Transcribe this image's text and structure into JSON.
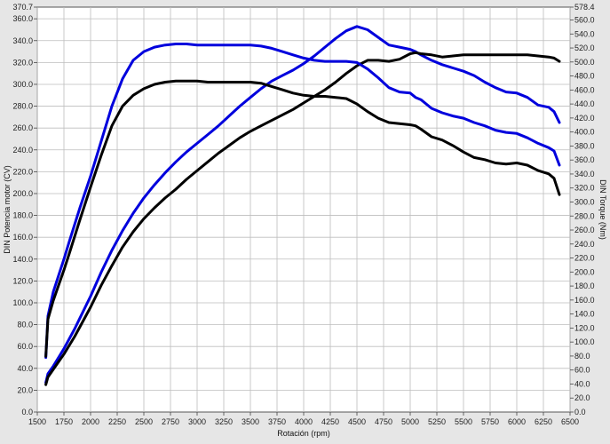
{
  "chart_data": {
    "type": "line",
    "xlabel": "Rotación (rpm)",
    "ylabel_left": "DIN Potencia motor (CV)",
    "ylabel_right": "DIN Torque (Nm)",
    "xlim": [
      1500,
      6500
    ],
    "ylim_left": [
      0,
      370.7
    ],
    "ylim_right": [
      0,
      578.4
    ],
    "grid": true,
    "x_ticks": [
      1500,
      1750,
      2000,
      2250,
      2500,
      2750,
      3000,
      3250,
      3500,
      3750,
      4000,
      4250,
      4500,
      4750,
      5000,
      5250,
      5500,
      5750,
      6000,
      6250,
      6500
    ],
    "x_tick_labels": [
      "1500",
      "1750",
      "2000",
      "2250",
      "2500",
      "2750",
      "3000",
      "3250",
      "3500",
      "3750",
      "4000",
      "4250",
      "4500",
      "4750",
      "5000",
      "5250",
      "5500",
      "5750",
      "6000",
      "6250",
      "6500"
    ],
    "y_left_ticks": [
      0,
      20,
      40,
      60,
      80,
      100,
      120,
      140,
      160,
      180,
      200,
      220,
      240,
      260,
      280,
      300,
      320,
      340,
      360,
      370.7
    ],
    "y_left_tick_labels": [
      "0.0",
      "20.0",
      "40.0",
      "60.0",
      "80.0",
      "100.0",
      "120.0",
      "140.0",
      "160.0",
      "180.0",
      "200.0",
      "220.0",
      "240.0",
      "260.0",
      "280.0",
      "300.0",
      "320.0",
      "340.0",
      "360.0",
      "370.7"
    ],
    "y_right_ticks": [
      0,
      20,
      40,
      60,
      80,
      100,
      120,
      140,
      160,
      180,
      200,
      220,
      240,
      260,
      280,
      300,
      320,
      340,
      360,
      380,
      400,
      420,
      440,
      460,
      480,
      500,
      520,
      540,
      560,
      578.4
    ],
    "y_right_tick_labels": [
      "0.0",
      "20.0",
      "40.0",
      "60.0",
      "80.0",
      "100.0",
      "120.0",
      "140.0",
      "160.0",
      "180.0",
      "200.0",
      "220.0",
      "240.0",
      "260.0",
      "280.0",
      "300.0",
      "320.0",
      "340.0",
      "360.0",
      "380.0",
      "400.0",
      "420.0",
      "440.0",
      "460.0",
      "480.0",
      "500.0",
      "520.0",
      "540.0",
      "560.0",
      "578.4"
    ],
    "series": [
      {
        "axis": "left",
        "color": "#0000dd",
        "x": [
          1580,
          1600,
          1650,
          1700,
          1750,
          1800,
          1850,
          1900,
          1950,
          2000,
          2100,
          2200,
          2300,
          2400,
          2500,
          2600,
          2700,
          2800,
          2900,
          3000,
          3100,
          3200,
          3300,
          3400,
          3500,
          3600,
          3700,
          3800,
          3900,
          4000,
          4100,
          4200,
          4300,
          4400,
          4500,
          4600,
          4700,
          4800,
          4900,
          5000,
          5050,
          5100,
          5200,
          5300,
          5400,
          5500,
          5600,
          5700,
          5800,
          5900,
          6000,
          6100,
          6200,
          6300,
          6350,
          6400
        ],
        "y": [
          27,
          35,
          42,
          50,
          58,
          67,
          76,
          86,
          96,
          106,
          128,
          148,
          166,
          182,
          196,
          208,
          219,
          229,
          238,
          246,
          254,
          262,
          271,
          280,
          288,
          296,
          303,
          308,
          313,
          319,
          326,
          334,
          342,
          349,
          353,
          350,
          343,
          336,
          334,
          332,
          330,
          327,
          322,
          318,
          315,
          312,
          308,
          302,
          297,
          293,
          292,
          288,
          281,
          279,
          275,
          265
        ]
      },
      {
        "axis": "left",
        "color": "#000000",
        "x": [
          1580,
          1600,
          1650,
          1700,
          1750,
          1800,
          1850,
          1900,
          1950,
          2000,
          2100,
          2200,
          2300,
          2400,
          2500,
          2600,
          2700,
          2800,
          2900,
          3000,
          3100,
          3200,
          3300,
          3400,
          3500,
          3600,
          3700,
          3800,
          3900,
          4000,
          4100,
          4200,
          4300,
          4400,
          4500,
          4600,
          4700,
          4800,
          4900,
          5000,
          5050,
          5100,
          5200,
          5300,
          5400,
          5500,
          5600,
          5700,
          5800,
          5900,
          6000,
          6100,
          6200,
          6300,
          6350,
          6400
        ],
        "y": [
          25,
          32,
          39,
          46,
          53,
          61,
          69,
          78,
          87,
          96,
          116,
          134,
          151,
          165,
          177,
          187,
          196,
          204,
          213,
          221,
          229,
          237,
          244,
          251,
          257,
          262,
          267,
          272,
          277,
          283,
          289,
          295,
          302,
          310,
          317,
          322,
          322,
          321,
          323,
          328,
          329,
          328,
          327,
          325,
          326,
          327,
          327,
          327,
          327,
          327,
          327,
          327,
          326,
          325,
          324,
          321
        ]
      },
      {
        "axis": "left",
        "color": "#0000dd",
        "x": [
          1580,
          1600,
          1650,
          1700,
          1750,
          1800,
          1900,
          2000,
          2100,
          2200,
          2300,
          2400,
          2500,
          2600,
          2700,
          2800,
          2900,
          3000,
          3100,
          3200,
          3300,
          3400,
          3500,
          3600,
          3700,
          3800,
          3900,
          4000,
          4100,
          4200,
          4300,
          4400,
          4500,
          4600,
          4700,
          4800,
          4900,
          5000,
          5050,
          5100,
          5200,
          5300,
          5400,
          5500,
          5600,
          5700,
          5800,
          5900,
          6000,
          6100,
          6200,
          6300,
          6350,
          6400
        ],
        "y": [
          50,
          88,
          110,
          125,
          140,
          156,
          187,
          216,
          248,
          280,
          305,
          322,
          330,
          334,
          336,
          337,
          337,
          336,
          336,
          336,
          336,
          336,
          336,
          335,
          333,
          330,
          327,
          324,
          322,
          321,
          321,
          321,
          320,
          314,
          306,
          297,
          293,
          292,
          288,
          286,
          278,
          274,
          271,
          269,
          265,
          262,
          258,
          256,
          255,
          251,
          246,
          242,
          239,
          226
        ]
      },
      {
        "axis": "left",
        "color": "#000000",
        "x": [
          1580,
          1600,
          1650,
          1700,
          1750,
          1800,
          1900,
          2000,
          2100,
          2200,
          2300,
          2400,
          2500,
          2600,
          2700,
          2800,
          2900,
          3000,
          3100,
          3200,
          3300,
          3400,
          3500,
          3600,
          3700,
          3800,
          3900,
          4000,
          4100,
          4200,
          4300,
          4400,
          4500,
          4600,
          4700,
          4800,
          4900,
          5000,
          5050,
          5100,
          5200,
          5300,
          5400,
          5500,
          5600,
          5700,
          5800,
          5900,
          6000,
          6100,
          6200,
          6300,
          6350,
          6400
        ],
        "y": [
          51,
          85,
          102,
          116,
          130,
          145,
          176,
          206,
          235,
          262,
          280,
          290,
          296,
          300,
          302,
          303,
          303,
          303,
          302,
          302,
          302,
          302,
          302,
          301,
          298,
          295,
          292,
          290,
          289,
          289,
          288,
          287,
          282,
          275,
          269,
          265,
          264,
          263,
          262,
          259,
          252,
          249,
          244,
          238,
          233,
          231,
          228,
          227,
          228,
          226,
          221,
          218,
          214,
          199
        ]
      }
    ]
  }
}
